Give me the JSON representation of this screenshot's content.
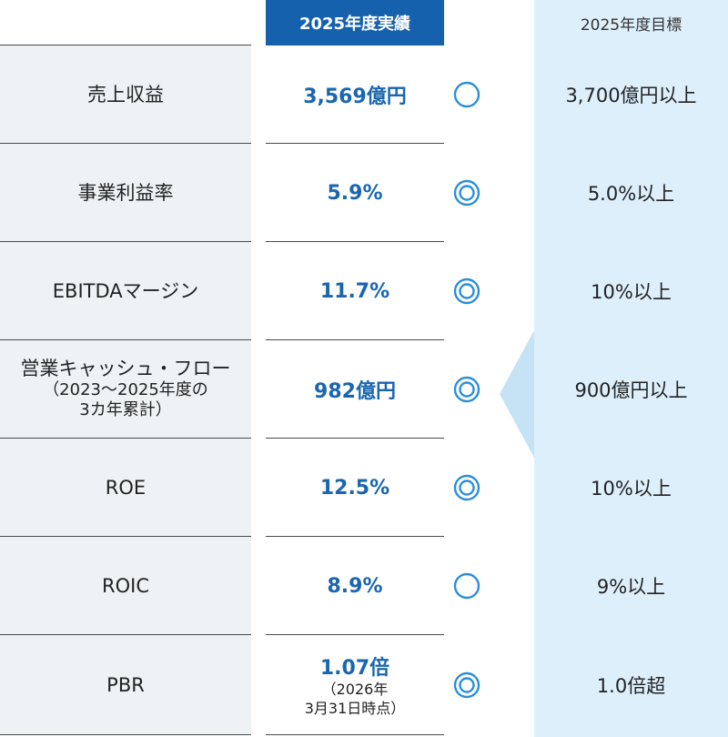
{
  "header": {
    "actual": "2025年度実績",
    "target": "2025年度目標"
  },
  "rows": [
    {
      "label": "売上収益",
      "actual": "3,569億円",
      "mark": "circle-icon",
      "target": "3,700億円以上"
    },
    {
      "label": "事業利益率",
      "actual": "5.9%",
      "mark": "double-circle-icon",
      "target": "5.0%以上"
    },
    {
      "label": "EBITDAマージン",
      "actual": "11.7%",
      "mark": "double-circle-icon",
      "target": "10%以上"
    },
    {
      "label": "営業キャッシュ・フロー",
      "label_sub1": "（2023〜2025年度の",
      "label_sub2": "3カ年累計）",
      "actual": "982億円",
      "mark": "double-circle-icon",
      "target": "900億円以上"
    },
    {
      "label": "ROE",
      "actual": "12.5%",
      "mark": "double-circle-icon",
      "target": "10%以上"
    },
    {
      "label": "ROIC",
      "actual": "8.9%",
      "mark": "circle-icon",
      "target": "9%以上"
    },
    {
      "label": "PBR",
      "actual": "1.07倍",
      "actual_note1": "（2026年",
      "actual_note2": "3月31日時点）",
      "mark": "double-circle-icon",
      "target": "1.0倍超"
    }
  ],
  "colors": {
    "header_bg": "#1661ad",
    "actual_text": "#1a66b0",
    "mark": "#2a8fd8",
    "label_bg": "#eef2f4",
    "target_bg": "#ddeffb",
    "arrow": "#c6e3f5"
  }
}
